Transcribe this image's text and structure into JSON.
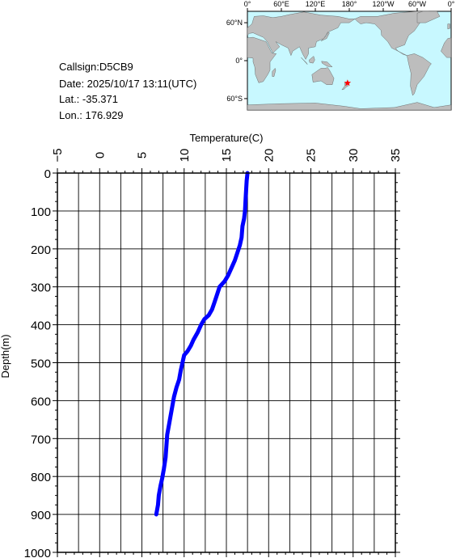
{
  "station": {
    "callsign_line": "Callsign:D5CB9",
    "date_line": "Date:  2025/10/17 13:11(UTC)",
    "lat_line": "Lat.:  -35.371",
    "lon_line": "Lon.:  176.929"
  },
  "map": {
    "top_labels": [
      "0°",
      "60°E",
      "120°E",
      "180°",
      "120°W",
      "60°W",
      "0°"
    ],
    "left_labels": [
      "60°N",
      "0°",
      "60°S"
    ],
    "ocean_color": "#c8f8ff",
    "land_color": "#bdbdbd",
    "marker_color": "#ff0000",
    "marker": {
      "lon": 176.929,
      "lat": -35.371
    }
  },
  "chart_data": {
    "type": "line",
    "title": "",
    "xlabel": "Temperature(C)",
    "ylabel": "Depth(m)",
    "xlim": [
      -5,
      35
    ],
    "ylim": [
      0,
      1000
    ],
    "y_inverted": true,
    "x_axis_position": "top",
    "x_ticks": [
      -5,
      0,
      5,
      10,
      15,
      20,
      25,
      30,
      35
    ],
    "y_ticks": [
      0,
      100,
      200,
      300,
      400,
      500,
      600,
      700,
      800,
      900,
      1000
    ],
    "grid": true,
    "series": [
      {
        "color": "#0000ff",
        "points": [
          [
            17.5,
            0
          ],
          [
            17.4,
            20
          ],
          [
            17.3,
            60
          ],
          [
            17.2,
            100
          ],
          [
            17.1,
            120
          ],
          [
            16.9,
            140
          ],
          [
            16.8,
            170
          ],
          [
            16.6,
            190
          ],
          [
            16.3,
            210
          ],
          [
            16.0,
            230
          ],
          [
            15.6,
            250
          ],
          [
            15.2,
            270
          ],
          [
            14.8,
            285
          ],
          [
            14.2,
            300
          ],
          [
            13.9,
            320
          ],
          [
            13.6,
            340
          ],
          [
            13.3,
            360
          ],
          [
            12.9,
            375
          ],
          [
            12.4,
            385
          ],
          [
            12.0,
            400
          ],
          [
            11.6,
            420
          ],
          [
            11.1,
            440
          ],
          [
            10.8,
            455
          ],
          [
            10.4,
            470
          ],
          [
            10.0,
            480
          ],
          [
            9.8,
            500
          ],
          [
            9.6,
            520
          ],
          [
            9.4,
            545
          ],
          [
            9.1,
            565
          ],
          [
            8.8,
            590
          ],
          [
            8.6,
            615
          ],
          [
            8.4,
            640
          ],
          [
            8.2,
            665
          ],
          [
            8.0,
            690
          ],
          [
            7.9,
            720
          ],
          [
            7.8,
            750
          ],
          [
            7.6,
            780
          ],
          [
            7.4,
            805
          ],
          [
            7.2,
            825
          ],
          [
            7.0,
            850
          ],
          [
            6.9,
            875
          ],
          [
            6.7,
            900
          ]
        ]
      }
    ]
  }
}
